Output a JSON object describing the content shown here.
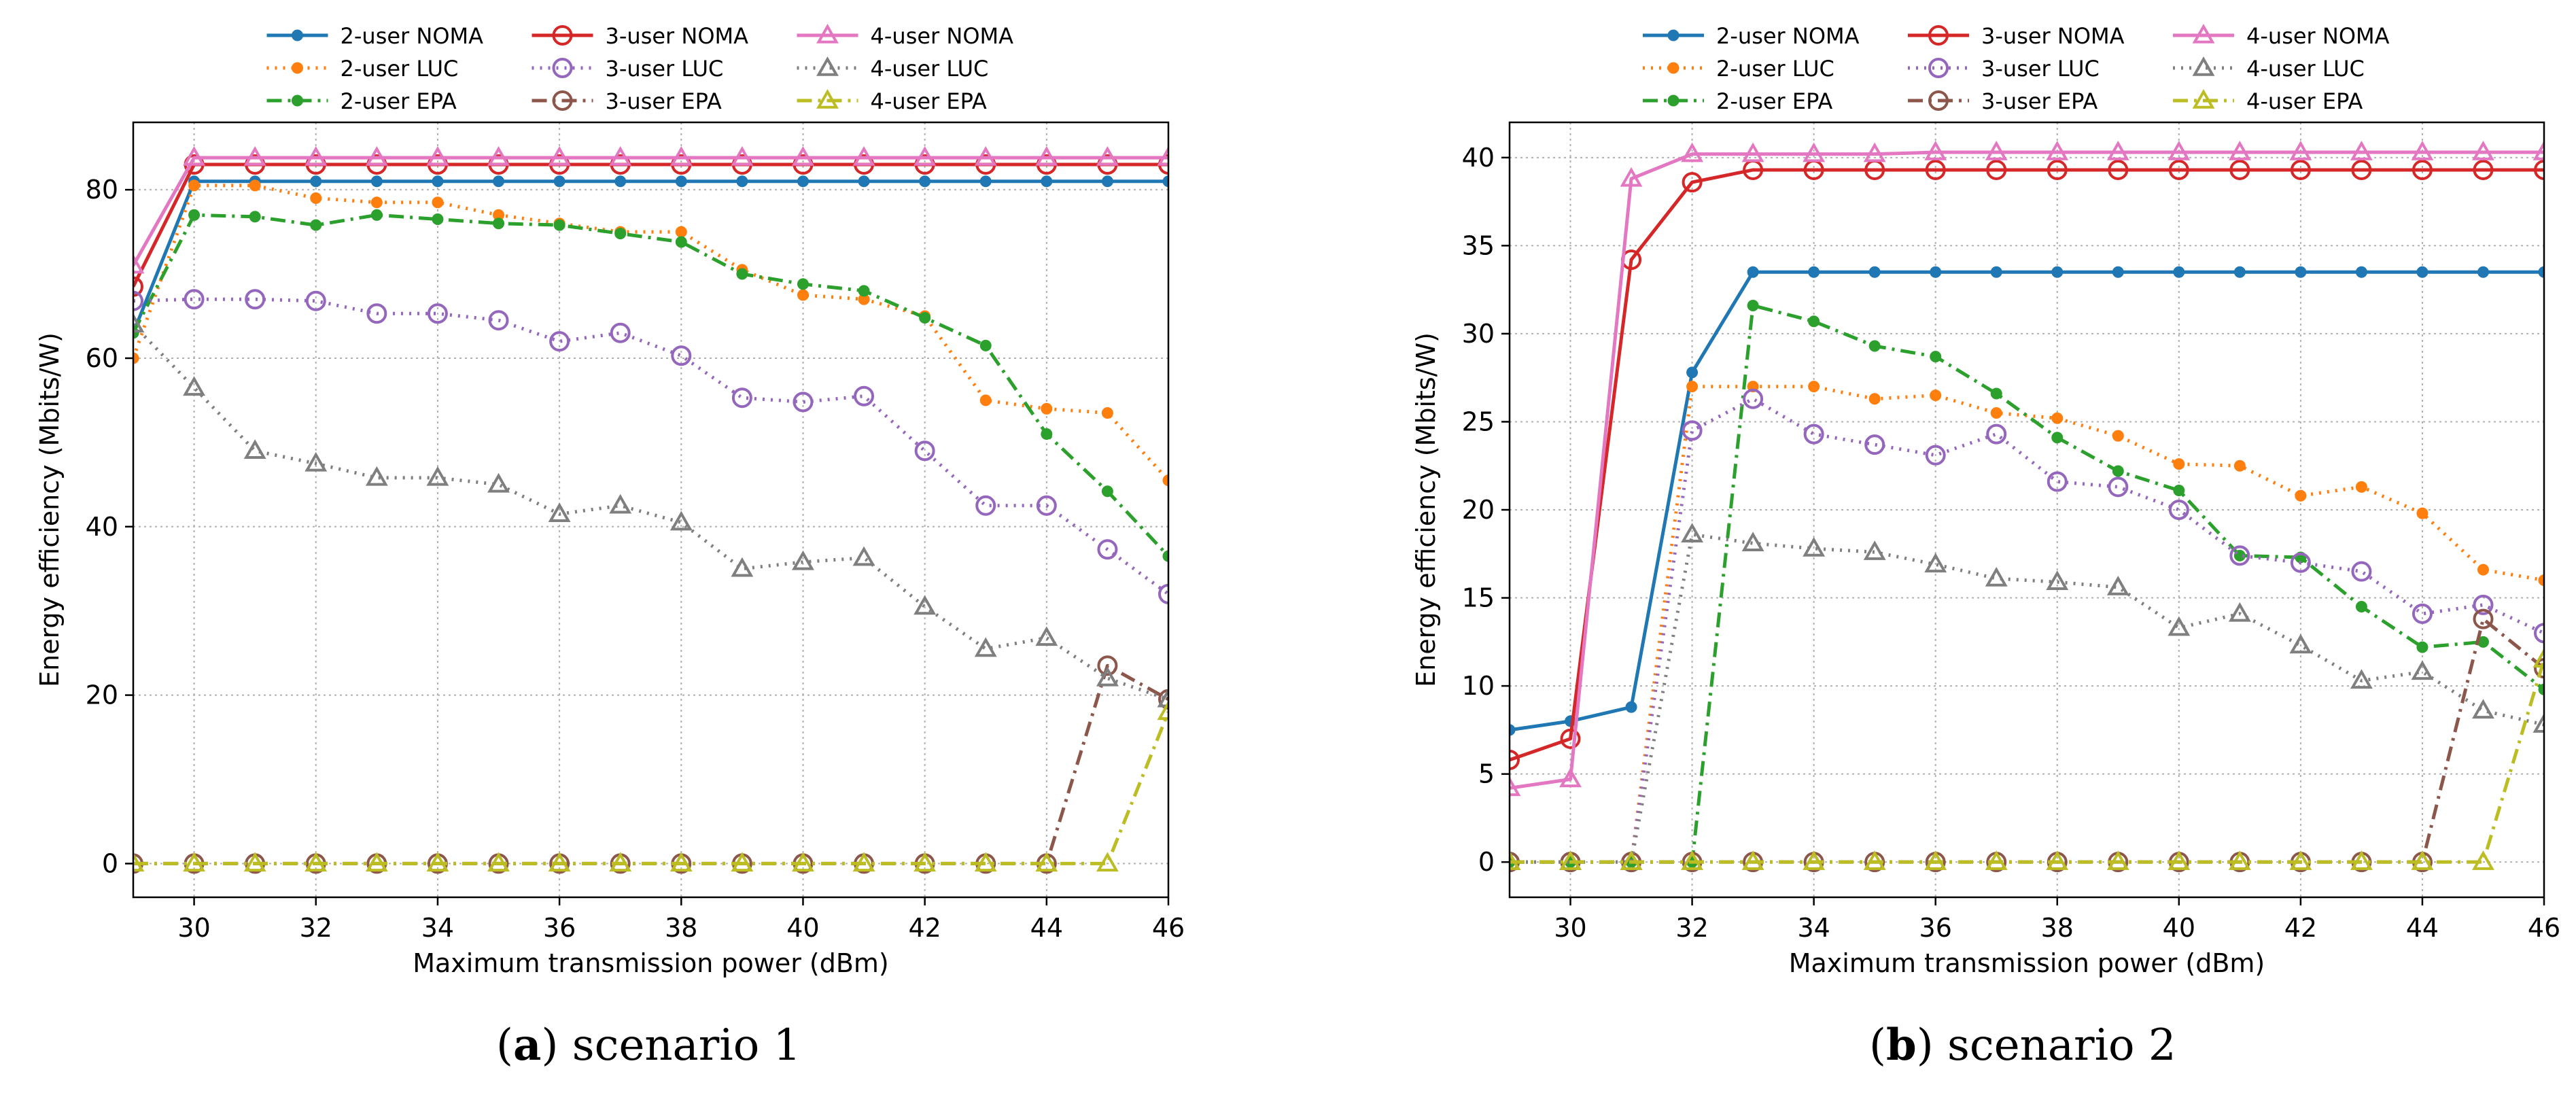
{
  "figure": {
    "captions": [
      {
        "letter": "a",
        "text": "scenario 1"
      },
      {
        "letter": "b",
        "text": "scenario 2"
      }
    ]
  },
  "chart_data": [
    {
      "type": "line",
      "panel": "a",
      "title": "",
      "xlabel": "Maximum transmission power (dBm)",
      "ylabel": "Energy efficiency (Mbits/W)",
      "xlim": [
        29,
        46
      ],
      "ylim": [
        -4,
        88
      ],
      "xticks": [
        30,
        32,
        34,
        36,
        38,
        40,
        42,
        44,
        46
      ],
      "yticks": [
        0,
        20,
        40,
        60,
        80
      ],
      "grid": true,
      "x": [
        29,
        30,
        31,
        32,
        33,
        34,
        35,
        36,
        37,
        38,
        39,
        40,
        41,
        42,
        43,
        44,
        45,
        46
      ],
      "series": [
        {
          "name": "2-user NOMA",
          "color": "#1f77b4",
          "dash": "solid",
          "marker": "dot",
          "values": [
            63,
            81,
            81,
            81,
            81,
            81,
            81,
            81,
            81,
            81,
            81,
            81,
            81,
            81,
            81,
            81,
            81,
            81
          ]
        },
        {
          "name": "2-user LUC",
          "color": "#ff7f0e",
          "dash": "dotted",
          "marker": "dot",
          "values": [
            60,
            80.5,
            80.5,
            79,
            78.5,
            78.5,
            77,
            76,
            75,
            75,
            70.5,
            67.5,
            67,
            65,
            55,
            54,
            53.5,
            45.5
          ]
        },
        {
          "name": "2-user EPA",
          "color": "#2ca02c",
          "dash": "dashdot",
          "marker": "dot",
          "values": [
            63,
            77,
            76.8,
            75.8,
            77,
            76.5,
            76,
            75.8,
            74.8,
            73.8,
            70,
            68.8,
            68,
            64.8,
            61.5,
            51,
            44.2,
            36.5
          ]
        },
        {
          "name": "3-user NOMA",
          "color": "#d62728",
          "dash": "solid",
          "marker": "circle",
          "values": [
            68.5,
            83,
            83,
            83,
            83,
            83,
            83,
            83,
            83,
            83,
            83,
            83,
            83,
            83,
            83,
            83,
            83,
            83
          ]
        },
        {
          "name": "3-user LUC",
          "color": "#9467bd",
          "dash": "dotted",
          "marker": "circle",
          "values": [
            66.8,
            67,
            67,
            66.8,
            65.3,
            65.3,
            64.5,
            62,
            63,
            60.3,
            55.3,
            54.8,
            55.5,
            49,
            42.5,
            42.5,
            37.3,
            32
          ]
        },
        {
          "name": "3-user EPA",
          "color": "#8c564b",
          "dash": "dashdot",
          "marker": "circle",
          "values": [
            0,
            0,
            0,
            0,
            0,
            0,
            0,
            0,
            0,
            0,
            0,
            0,
            0,
            0,
            0,
            0,
            23.5,
            19.5
          ]
        },
        {
          "name": "4-user NOMA",
          "color": "#e377c2",
          "dash": "solid",
          "marker": "triangle",
          "values": [
            71,
            83.8,
            83.8,
            83.8,
            83.8,
            83.8,
            83.8,
            83.8,
            83.8,
            83.8,
            83.8,
            83.8,
            83.8,
            83.8,
            83.8,
            83.8,
            83.8,
            83.8
          ]
        },
        {
          "name": "4-user LUC",
          "color": "#7f7f7f",
          "dash": "dotted",
          "marker": "triangle",
          "values": [
            64,
            56.5,
            49,
            47.5,
            45.8,
            45.8,
            45,
            41.5,
            42.5,
            40.5,
            35,
            35.8,
            36.3,
            30.5,
            25.5,
            26.8,
            22,
            19.5
          ]
        },
        {
          "name": "4-user EPA",
          "color": "#bcbd22",
          "dash": "dashdot",
          "marker": "triangle",
          "values": [
            0,
            0,
            0,
            0,
            0,
            0,
            0,
            0,
            0,
            0,
            0,
            0,
            0,
            0,
            0,
            0,
            0,
            18
          ]
        }
      ]
    },
    {
      "type": "line",
      "panel": "b",
      "title": "",
      "xlabel": "Maximum transmission power (dBm)",
      "ylabel": "Energy efficiency (Mbits/W)",
      "xlim": [
        29,
        46
      ],
      "ylim": [
        -2,
        42
      ],
      "xticks": [
        30,
        32,
        34,
        36,
        38,
        40,
        42,
        44,
        46
      ],
      "yticks": [
        0,
        5,
        10,
        15,
        20,
        25,
        30,
        35,
        40
      ],
      "grid": true,
      "x": [
        29,
        30,
        31,
        32,
        33,
        34,
        35,
        36,
        37,
        38,
        39,
        40,
        41,
        42,
        43,
        44,
        45,
        46
      ],
      "series": [
        {
          "name": "2-user NOMA",
          "color": "#1f77b4",
          "dash": "solid",
          "marker": "dot",
          "values": [
            7.5,
            8,
            8.8,
            27.8,
            33.5,
            33.5,
            33.5,
            33.5,
            33.5,
            33.5,
            33.5,
            33.5,
            33.5,
            33.5,
            33.5,
            33.5,
            33.5,
            33.5
          ]
        },
        {
          "name": "2-user LUC",
          "color": "#ff7f0e",
          "dash": "dotted",
          "marker": "dot",
          "values": [
            0,
            0,
            0,
            27,
            27,
            27,
            26.3,
            26.5,
            25.5,
            25.2,
            24.2,
            22.6,
            22.5,
            20.8,
            21.3,
            19.8,
            16.6,
            16
          ]
        },
        {
          "name": "2-user EPA",
          "color": "#2ca02c",
          "dash": "dashdot",
          "marker": "dot",
          "values": [
            0,
            0,
            0,
            0,
            31.6,
            30.7,
            29.3,
            28.7,
            26.6,
            24.1,
            22.2,
            21.1,
            17.4,
            17.3,
            14.5,
            12.2,
            12.5,
            9.8
          ]
        },
        {
          "name": "3-user NOMA",
          "color": "#d62728",
          "dash": "solid",
          "marker": "circle",
          "values": [
            5.8,
            7,
            34.2,
            38.6,
            39.3,
            39.3,
            39.3,
            39.3,
            39.3,
            39.3,
            39.3,
            39.3,
            39.3,
            39.3,
            39.3,
            39.3,
            39.3,
            39.3
          ]
        },
        {
          "name": "3-user LUC",
          "color": "#9467bd",
          "dash": "dotted",
          "marker": "circle",
          "values": [
            0,
            0,
            0,
            24.5,
            26.3,
            24.3,
            23.7,
            23.1,
            24.3,
            21.6,
            21.3,
            20,
            17.4,
            17,
            16.5,
            14.1,
            14.6,
            13
          ]
        },
        {
          "name": "3-user EPA",
          "color": "#8c564b",
          "dash": "dashdot",
          "marker": "circle",
          "values": [
            0,
            0,
            0,
            0,
            0,
            0,
            0,
            0,
            0,
            0,
            0,
            0,
            0,
            0,
            0,
            0,
            13.8,
            11
          ]
        },
        {
          "name": "4-user NOMA",
          "color": "#e377c2",
          "dash": "solid",
          "marker": "triangle",
          "values": [
            4.2,
            4.7,
            38.8,
            40.2,
            40.2,
            40.2,
            40.2,
            40.3,
            40.3,
            40.3,
            40.3,
            40.3,
            40.3,
            40.3,
            40.3,
            40.3,
            40.3,
            40.3
          ]
        },
        {
          "name": "4-user LUC",
          "color": "#7f7f7f",
          "dash": "dotted",
          "marker": "triangle",
          "values": [
            0,
            0,
            0,
            18.6,
            18.1,
            17.8,
            17.6,
            16.9,
            16.1,
            15.9,
            15.6,
            13.3,
            14.1,
            12.3,
            10.3,
            10.8,
            8.6,
            7.8
          ]
        },
        {
          "name": "4-user EPA",
          "color": "#bcbd22",
          "dash": "dashdot",
          "marker": "triangle",
          "values": [
            0,
            0,
            0,
            0,
            0,
            0,
            0,
            0,
            0,
            0,
            0,
            0,
            0,
            0,
            0,
            0,
            0,
            11.5
          ]
        }
      ]
    }
  ]
}
